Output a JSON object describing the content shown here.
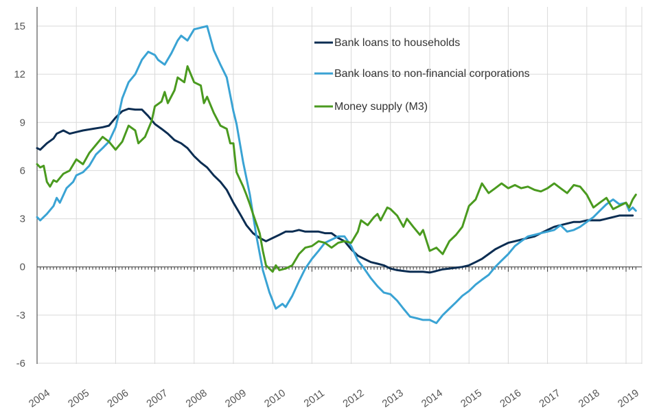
{
  "chart_data": {
    "type": "line",
    "title": "",
    "xlabel": "",
    "ylabel": "",
    "xlim": [
      2004,
      2019.25
    ],
    "ylim": [
      -6,
      16
    ],
    "grid": true,
    "legend_position": "top-right",
    "y_ticks": [
      "15",
      "12",
      "9",
      "6",
      "3",
      "0",
      "-3",
      "-6"
    ],
    "x_ticks": [
      "2004",
      "2005",
      "2006",
      "2007",
      "2008",
      "2009",
      "2010",
      "2011",
      "2012",
      "2013",
      "2014",
      "2015",
      "2016",
      "2017",
      "2018",
      "2019"
    ],
    "series": [
      {
        "name": "Bank loans to households",
        "color": "#0b2d52",
        "points": [
          [
            2004.0,
            7.4
          ],
          [
            2004.08,
            7.3
          ],
          [
            2004.25,
            7.7
          ],
          [
            2004.42,
            8.0
          ],
          [
            2004.5,
            8.3
          ],
          [
            2004.67,
            8.5
          ],
          [
            2004.83,
            8.3
          ],
          [
            2005.0,
            8.4
          ],
          [
            2005.17,
            8.5
          ],
          [
            2005.42,
            8.6
          ],
          [
            2005.67,
            8.7
          ],
          [
            2005.83,
            8.8
          ],
          [
            2006.0,
            9.3
          ],
          [
            2006.17,
            9.7
          ],
          [
            2006.33,
            9.85
          ],
          [
            2006.5,
            9.8
          ],
          [
            2006.67,
            9.8
          ],
          [
            2006.83,
            9.4
          ],
          [
            2007.0,
            8.9
          ],
          [
            2007.17,
            8.6
          ],
          [
            2007.33,
            8.3
          ],
          [
            2007.5,
            7.9
          ],
          [
            2007.67,
            7.7
          ],
          [
            2007.83,
            7.4
          ],
          [
            2008.0,
            6.9
          ],
          [
            2008.17,
            6.5
          ],
          [
            2008.33,
            6.2
          ],
          [
            2008.5,
            5.7
          ],
          [
            2008.67,
            5.3
          ],
          [
            2008.83,
            4.8
          ],
          [
            2009.0,
            4.0
          ],
          [
            2009.17,
            3.3
          ],
          [
            2009.33,
            2.6
          ],
          [
            2009.5,
            2.1
          ],
          [
            2009.67,
            1.8
          ],
          [
            2009.83,
            1.6
          ],
          [
            2010.0,
            1.8
          ],
          [
            2010.17,
            2.0
          ],
          [
            2010.33,
            2.2
          ],
          [
            2010.5,
            2.2
          ],
          [
            2010.67,
            2.3
          ],
          [
            2010.83,
            2.2
          ],
          [
            2011.0,
            2.2
          ],
          [
            2011.17,
            2.2
          ],
          [
            2011.33,
            2.1
          ],
          [
            2011.5,
            2.1
          ],
          [
            2011.67,
            1.8
          ],
          [
            2011.83,
            1.6
          ],
          [
            2012.0,
            1.1
          ],
          [
            2012.17,
            0.7
          ],
          [
            2012.33,
            0.5
          ],
          [
            2012.5,
            0.3
          ],
          [
            2012.67,
            0.2
          ],
          [
            2012.83,
            0.1
          ],
          [
            2013.0,
            -0.1
          ],
          [
            2013.17,
            -0.2
          ],
          [
            2013.33,
            -0.25
          ],
          [
            2013.5,
            -0.3
          ],
          [
            2013.67,
            -0.3
          ],
          [
            2013.83,
            -0.3
          ],
          [
            2014.0,
            -0.35
          ],
          [
            2014.17,
            -0.25
          ],
          [
            2014.33,
            -0.15
          ],
          [
            2014.5,
            -0.1
          ],
          [
            2014.67,
            -0.05
          ],
          [
            2014.83,
            0.0
          ],
          [
            2015.0,
            0.1
          ],
          [
            2015.17,
            0.3
          ],
          [
            2015.33,
            0.5
          ],
          [
            2015.5,
            0.8
          ],
          [
            2015.67,
            1.1
          ],
          [
            2015.83,
            1.3
          ],
          [
            2016.0,
            1.5
          ],
          [
            2016.17,
            1.6
          ],
          [
            2016.33,
            1.7
          ],
          [
            2016.5,
            1.8
          ],
          [
            2016.67,
            1.9
          ],
          [
            2016.83,
            2.1
          ],
          [
            2017.0,
            2.3
          ],
          [
            2017.17,
            2.5
          ],
          [
            2017.33,
            2.6
          ],
          [
            2017.5,
            2.7
          ],
          [
            2017.67,
            2.8
          ],
          [
            2017.83,
            2.8
          ],
          [
            2018.0,
            2.9
          ],
          [
            2018.17,
            2.9
          ],
          [
            2018.33,
            2.9
          ],
          [
            2018.5,
            3.0
          ],
          [
            2018.67,
            3.1
          ],
          [
            2018.83,
            3.2
          ],
          [
            2019.0,
            3.2
          ],
          [
            2019.17,
            3.2
          ]
        ]
      },
      {
        "name": "Bank loans to non-financial corporations",
        "color": "#3aa3d4",
        "points": [
          [
            2004.0,
            3.1
          ],
          [
            2004.08,
            2.9
          ],
          [
            2004.25,
            3.3
          ],
          [
            2004.42,
            3.8
          ],
          [
            2004.5,
            4.3
          ],
          [
            2004.58,
            4.0
          ],
          [
            2004.75,
            4.9
          ],
          [
            2004.92,
            5.3
          ],
          [
            2005.0,
            5.7
          ],
          [
            2005.17,
            5.9
          ],
          [
            2005.33,
            6.3
          ],
          [
            2005.5,
            7.0
          ],
          [
            2005.67,
            7.4
          ],
          [
            2005.83,
            7.8
          ],
          [
            2006.0,
            8.7
          ],
          [
            2006.08,
            9.5
          ],
          [
            2006.17,
            10.5
          ],
          [
            2006.33,
            11.5
          ],
          [
            2006.5,
            12.0
          ],
          [
            2006.67,
            12.9
          ],
          [
            2006.83,
            13.4
          ],
          [
            2007.0,
            13.2
          ],
          [
            2007.08,
            12.9
          ],
          [
            2007.25,
            12.6
          ],
          [
            2007.42,
            13.3
          ],
          [
            2007.58,
            14.1
          ],
          [
            2007.67,
            14.4
          ],
          [
            2007.83,
            14.1
          ],
          [
            2008.0,
            14.8
          ],
          [
            2008.17,
            14.9
          ],
          [
            2008.33,
            15.0
          ],
          [
            2008.5,
            13.5
          ],
          [
            2008.67,
            12.6
          ],
          [
            2008.83,
            11.8
          ],
          [
            2009.0,
            9.7
          ],
          [
            2009.08,
            8.9
          ],
          [
            2009.25,
            6.5
          ],
          [
            2009.42,
            4.5
          ],
          [
            2009.58,
            2.0
          ],
          [
            2009.75,
            -0.2
          ],
          [
            2009.92,
            -1.6
          ],
          [
            2010.08,
            -2.6
          ],
          [
            2010.25,
            -2.3
          ],
          [
            2010.33,
            -2.5
          ],
          [
            2010.5,
            -1.8
          ],
          [
            2010.67,
            -0.9
          ],
          [
            2010.83,
            -0.1
          ],
          [
            2011.0,
            0.5
          ],
          [
            2011.17,
            1.0
          ],
          [
            2011.33,
            1.5
          ],
          [
            2011.5,
            1.7
          ],
          [
            2011.67,
            1.9
          ],
          [
            2011.83,
            1.9
          ],
          [
            2012.0,
            1.3
          ],
          [
            2012.17,
            0.4
          ],
          [
            2012.33,
            -0.1
          ],
          [
            2012.5,
            -0.7
          ],
          [
            2012.67,
            -1.2
          ],
          [
            2012.83,
            -1.6
          ],
          [
            2013.0,
            -1.7
          ],
          [
            2013.17,
            -2.1
          ],
          [
            2013.33,
            -2.6
          ],
          [
            2013.5,
            -3.1
          ],
          [
            2013.67,
            -3.2
          ],
          [
            2013.83,
            -3.3
          ],
          [
            2014.0,
            -3.3
          ],
          [
            2014.17,
            -3.5
          ],
          [
            2014.33,
            -3.0
          ],
          [
            2014.5,
            -2.6
          ],
          [
            2014.67,
            -2.2
          ],
          [
            2014.83,
            -1.8
          ],
          [
            2015.0,
            -1.5
          ],
          [
            2015.17,
            -1.1
          ],
          [
            2015.33,
            -0.8
          ],
          [
            2015.5,
            -0.5
          ],
          [
            2015.67,
            0.0
          ],
          [
            2015.83,
            0.4
          ],
          [
            2016.0,
            0.8
          ],
          [
            2016.17,
            1.3
          ],
          [
            2016.33,
            1.6
          ],
          [
            2016.5,
            1.9
          ],
          [
            2016.67,
            2.0
          ],
          [
            2016.83,
            2.1
          ],
          [
            2017.0,
            2.2
          ],
          [
            2017.17,
            2.3
          ],
          [
            2017.33,
            2.6
          ],
          [
            2017.5,
            2.2
          ],
          [
            2017.67,
            2.3
          ],
          [
            2017.83,
            2.5
          ],
          [
            2018.0,
            2.8
          ],
          [
            2018.17,
            3.1
          ],
          [
            2018.33,
            3.5
          ],
          [
            2018.5,
            3.9
          ],
          [
            2018.67,
            4.2
          ],
          [
            2018.83,
            3.9
          ],
          [
            2019.0,
            4.0
          ],
          [
            2019.08,
            3.5
          ],
          [
            2019.17,
            3.7
          ],
          [
            2019.25,
            3.5
          ]
        ]
      },
      {
        "name": "Money supply (M3)",
        "color": "#4a9a1f",
        "points": [
          [
            2004.0,
            6.4
          ],
          [
            2004.08,
            6.2
          ],
          [
            2004.17,
            6.3
          ],
          [
            2004.25,
            5.3
          ],
          [
            2004.33,
            5.0
          ],
          [
            2004.42,
            5.4
          ],
          [
            2004.5,
            5.3
          ],
          [
            2004.67,
            5.8
          ],
          [
            2004.83,
            6.0
          ],
          [
            2005.0,
            6.7
          ],
          [
            2005.17,
            6.4
          ],
          [
            2005.33,
            7.1
          ],
          [
            2005.5,
            7.6
          ],
          [
            2005.67,
            8.1
          ],
          [
            2005.83,
            7.8
          ],
          [
            2006.0,
            7.3
          ],
          [
            2006.17,
            7.8
          ],
          [
            2006.33,
            8.8
          ],
          [
            2006.5,
            8.5
          ],
          [
            2006.58,
            7.7
          ],
          [
            2006.75,
            8.1
          ],
          [
            2006.92,
            9.1
          ],
          [
            2007.0,
            10.0
          ],
          [
            2007.17,
            10.3
          ],
          [
            2007.25,
            10.9
          ],
          [
            2007.33,
            10.2
          ],
          [
            2007.5,
            11.0
          ],
          [
            2007.58,
            11.8
          ],
          [
            2007.75,
            11.5
          ],
          [
            2007.83,
            12.5
          ],
          [
            2008.0,
            11.5
          ],
          [
            2008.17,
            11.3
          ],
          [
            2008.25,
            10.2
          ],
          [
            2008.33,
            10.6
          ],
          [
            2008.5,
            9.6
          ],
          [
            2008.67,
            8.8
          ],
          [
            2008.83,
            8.6
          ],
          [
            2008.92,
            7.7
          ],
          [
            2009.0,
            7.7
          ],
          [
            2009.08,
            5.9
          ],
          [
            2009.25,
            5.0
          ],
          [
            2009.33,
            4.5
          ],
          [
            2009.42,
            3.9
          ],
          [
            2009.5,
            3.3
          ],
          [
            2009.67,
            2.1
          ],
          [
            2009.75,
            1.0
          ],
          [
            2009.83,
            0.1
          ],
          [
            2010.0,
            -0.3
          ],
          [
            2010.08,
            0.1
          ],
          [
            2010.17,
            -0.2
          ],
          [
            2010.33,
            -0.1
          ],
          [
            2010.5,
            0.1
          ],
          [
            2010.67,
            0.8
          ],
          [
            2010.83,
            1.2
          ],
          [
            2011.0,
            1.3
          ],
          [
            2011.17,
            1.6
          ],
          [
            2011.33,
            1.5
          ],
          [
            2011.5,
            1.2
          ],
          [
            2011.67,
            1.5
          ],
          [
            2011.83,
            1.6
          ],
          [
            2012.0,
            1.5
          ],
          [
            2012.17,
            2.2
          ],
          [
            2012.25,
            2.9
          ],
          [
            2012.42,
            2.6
          ],
          [
            2012.58,
            3.1
          ],
          [
            2012.67,
            3.3
          ],
          [
            2012.75,
            2.9
          ],
          [
            2012.92,
            3.7
          ],
          [
            2013.0,
            3.6
          ],
          [
            2013.17,
            3.2
          ],
          [
            2013.33,
            2.5
          ],
          [
            2013.42,
            3.0
          ],
          [
            2013.58,
            2.5
          ],
          [
            2013.75,
            2.0
          ],
          [
            2013.83,
            2.3
          ],
          [
            2014.0,
            1.0
          ],
          [
            2014.17,
            1.2
          ],
          [
            2014.33,
            0.8
          ],
          [
            2014.5,
            1.6
          ],
          [
            2014.67,
            2.0
          ],
          [
            2014.83,
            2.5
          ],
          [
            2015.0,
            3.8
          ],
          [
            2015.17,
            4.2
          ],
          [
            2015.33,
            5.2
          ],
          [
            2015.5,
            4.6
          ],
          [
            2015.67,
            4.9
          ],
          [
            2015.83,
            5.2
          ],
          [
            2016.0,
            4.9
          ],
          [
            2016.17,
            5.1
          ],
          [
            2016.33,
            4.9
          ],
          [
            2016.5,
            5.0
          ],
          [
            2016.67,
            4.8
          ],
          [
            2016.83,
            4.7
          ],
          [
            2017.0,
            4.9
          ],
          [
            2017.17,
            5.2
          ],
          [
            2017.33,
            4.9
          ],
          [
            2017.5,
            4.6
          ],
          [
            2017.67,
            5.1
          ],
          [
            2017.83,
            5.0
          ],
          [
            2018.0,
            4.5
          ],
          [
            2018.17,
            3.7
          ],
          [
            2018.33,
            4.0
          ],
          [
            2018.5,
            4.3
          ],
          [
            2018.67,
            3.6
          ],
          [
            2018.83,
            3.8
          ],
          [
            2019.0,
            4.0
          ],
          [
            2019.08,
            3.7
          ],
          [
            2019.17,
            4.2
          ],
          [
            2019.25,
            4.5
          ]
        ]
      }
    ]
  }
}
